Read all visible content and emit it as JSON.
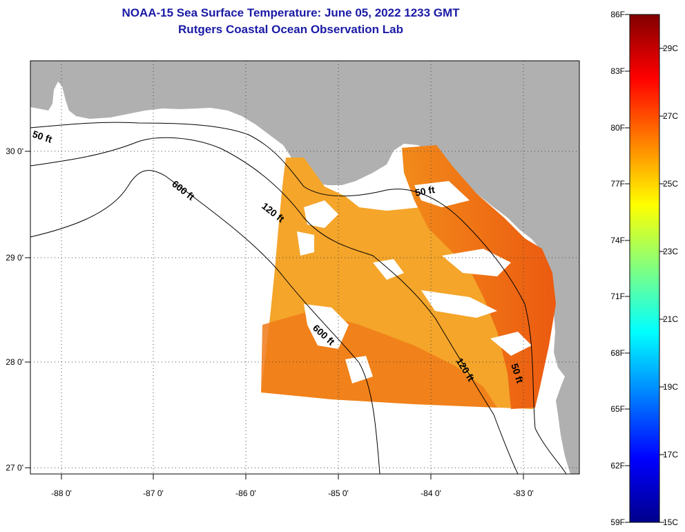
{
  "title": {
    "line1": "NOAA-15 Sea Surface Temperature:  June 05, 2022 1233 GMT",
    "line2": "Rutgers Coastal Ocean Observation Lab"
  },
  "map": {
    "lat_labels": [
      "30 0'",
      "29 0'",
      "28 0'",
      "27 0'"
    ],
    "lon_labels": [
      "-88 0'",
      "-87 0'",
      "-86 0'",
      "-85 0'",
      "-84 0'",
      "-83 0'"
    ],
    "contour_labels": {
      "c50_west": "50 ft",
      "c600_north": "600 ft",
      "c120_north": "120 ft",
      "c50_east": "50 ft",
      "c600_south": "600 ft",
      "c120_south": "120 ft",
      "c50_south": "50 ft"
    }
  },
  "colorbar": {
    "f_labels": [
      "86F",
      "83F",
      "80F",
      "77F",
      "74F",
      "71F",
      "68F",
      "65F",
      "62F",
      "59F"
    ],
    "c_labels": [
      "29C",
      "27C",
      "25C",
      "23C",
      "21C",
      "19C",
      "17C",
      "15C"
    ],
    "colors": [
      "#00008b",
      "#0000ff",
      "#0080ff",
      "#00ffff",
      "#80ff80",
      "#ffff00",
      "#ff8000",
      "#ff0000",
      "#800000"
    ]
  },
  "colors": {
    "land": "#b0b0b0",
    "ocean": "#ffffff",
    "sst_warm": "#f07010",
    "sst_mid": "#f4a020",
    "title": "#1a1aa6"
  }
}
